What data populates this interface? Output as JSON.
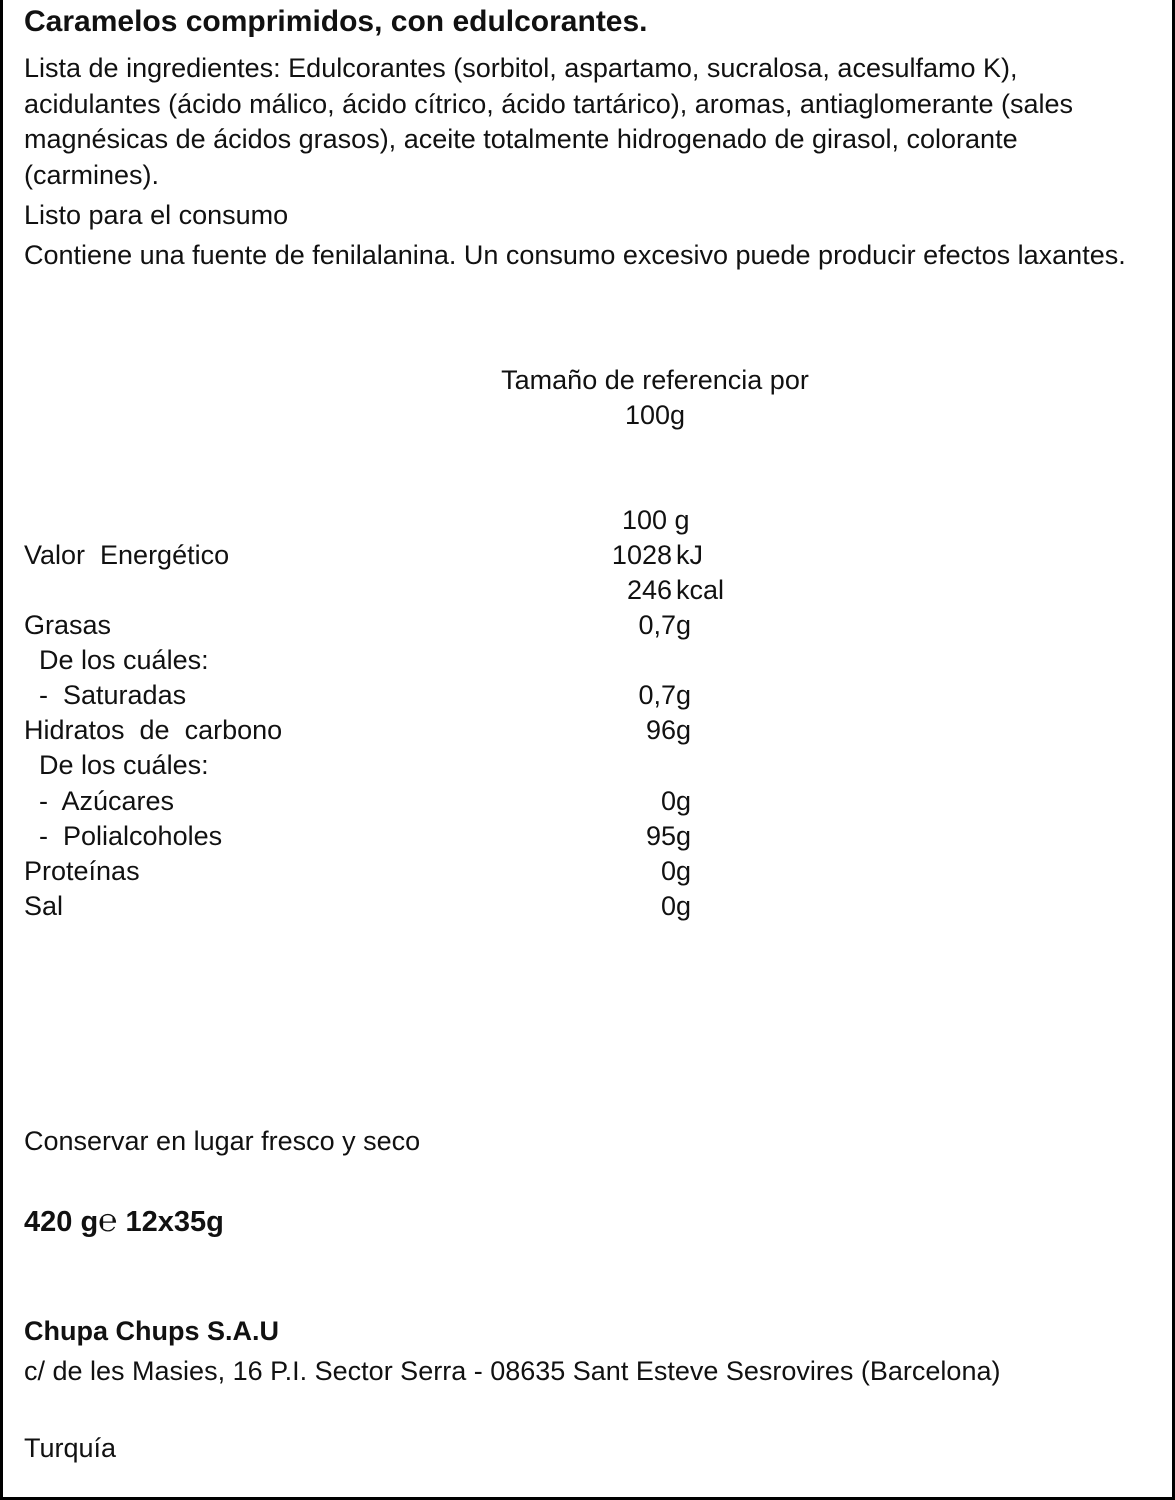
{
  "title": "Caramelos comprimidos, con edulcorantes.",
  "ingredients": "Lista de ingredientes: Edulcorantes (sorbitol, aspartamo, sucralosa, acesulfamo K), acidulantes (ácido málico, ácido cítrico, ácido tartárico), aromas, antiaglomerante (sales magnésicas de ácidos grasos), aceite totalmente hidrogenado de girasol, colorante (carmines).",
  "ready": "Listo para el consumo",
  "warning": "Contiene una fuente de fenilalanina. Un consumo excesivo puede producir efectos laxantes.",
  "reference": {
    "line1": "Tamaño de referencia por",
    "line2": "100g"
  },
  "nutrition": {
    "column_header": "100 g",
    "energy": {
      "label": "Valor  Energético",
      "kj": "1028",
      "kj_unit": "kJ",
      "kcal": "246",
      "kcal_unit": "kcal"
    },
    "rows": [
      {
        "label": "Grasas",
        "value": "0,7g"
      },
      {
        "label": "  De los cuáles:",
        "value": ""
      },
      {
        "label": "  -  Saturadas",
        "value": "0,7g"
      },
      {
        "label": "Hidratos  de  carbono",
        "value": "96g"
      },
      {
        "label": "  De los cuáles:",
        "value": ""
      },
      {
        "label": "  -  Azúcares",
        "value": "0g"
      },
      {
        "label": "  -  Polialcoholes",
        "value": "95g"
      },
      {
        "label": "Proteínas",
        "value": "0g"
      },
      {
        "label": "Sal",
        "value": "0g"
      }
    ]
  },
  "storage": "Conservar en lugar fresco y seco",
  "net_weight": {
    "weight": "420 g",
    "estimated_sign": "℮",
    "packs": "12x35g"
  },
  "company": "Chupa Chups S.A.U",
  "address": "c/ de les Masies, 16 P.I. Sector Serra - 08635 Sant Esteve Sesrovires (Barcelona)",
  "origin": "Turquía"
}
